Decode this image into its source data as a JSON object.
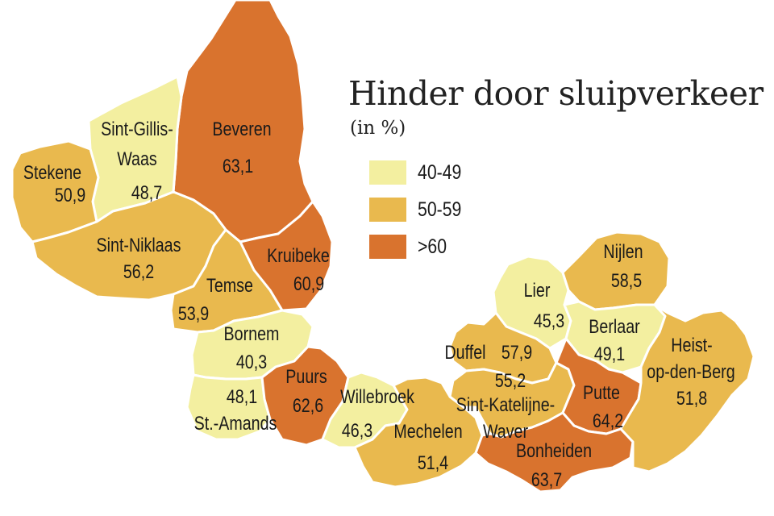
{
  "title": "Hinder door sluipverkeer",
  "subtitle": "(in %)",
  "colors": {
    "low": "#f3efa0",
    "mid": "#e9b94e",
    "high": "#d9732e"
  },
  "legend": [
    {
      "label": "40-49",
      "color": "#f3efa0"
    },
    {
      "label": "50-59",
      "color": "#e9b94e"
    },
    {
      "label": ">60",
      "color": "#d9732e"
    }
  ],
  "regions": [
    {
      "name": "Beveren",
      "value": "63,1",
      "band": "high"
    },
    {
      "name": "Sint-Gillis-Waas",
      "name_line1": "Sint-Gillis-",
      "name_line2": "Waas",
      "value": "48,7",
      "band": "low"
    },
    {
      "name": "Stekene",
      "value": "50,9",
      "band": "mid"
    },
    {
      "name": "Sint-Niklaas",
      "value": "56,2",
      "band": "mid"
    },
    {
      "name": "Kruibeke",
      "value": "60,9",
      "band": "high"
    },
    {
      "name": "Temse",
      "value": "53,9",
      "band": "mid"
    },
    {
      "name": "Bornem",
      "value": "40,3",
      "band": "low"
    },
    {
      "name": "St.-Amands",
      "value": "48,1",
      "band": "low"
    },
    {
      "name": "Puurs",
      "value": "62,6",
      "band": "high"
    },
    {
      "name": "Willebroek",
      "value": "46,3",
      "band": "low"
    },
    {
      "name": "Mechelen",
      "value": "51,4",
      "band": "mid"
    },
    {
      "name": "Lier",
      "value": "45,3",
      "band": "low"
    },
    {
      "name": "Nijlen",
      "value": "58,5",
      "band": "mid"
    },
    {
      "name": "Berlaar",
      "value": "49,1",
      "band": "low"
    },
    {
      "name": "Duffel",
      "value": "57,9",
      "band": "mid"
    },
    {
      "name": "Sint-Katelijne-Waver",
      "name_line1": "Sint-Katelijne-",
      "name_line2": "Waver",
      "value": "55,2",
      "band": "mid"
    },
    {
      "name": "Putte",
      "value": "64,2",
      "band": "high"
    },
    {
      "name": "Bonheiden",
      "value": "63,7",
      "band": "high"
    },
    {
      "name": "Heist-op-den-Berg",
      "name_line1": "Heist-",
      "name_line2": "op-den-Berg",
      "value": "51,8",
      "band": "mid"
    }
  ]
}
